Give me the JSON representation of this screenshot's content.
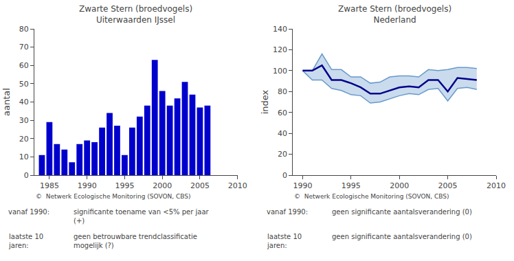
{
  "chart_data": [
    {
      "type": "bar",
      "title": "Zwarte Stern (broedvogels)",
      "subtitle": "Uiterwaarden IJssel",
      "ylabel": "aantal",
      "x": [
        1984,
        1985,
        1986,
        1987,
        1988,
        1989,
        1990,
        1991,
        1992,
        1993,
        1994,
        1995,
        1996,
        1997,
        1998,
        1999,
        2000,
        2001,
        2002,
        2003,
        2004,
        2005,
        2006,
        2007
      ],
      "values": [
        11,
        29,
        17,
        14,
        7,
        17,
        19,
        18,
        26,
        34,
        27,
        11,
        26,
        32,
        38,
        63,
        46,
        38,
        42,
        51,
        44,
        37,
        38,
        0
      ],
      "color": "#0000cc",
      "xlim": [
        1983,
        2010
      ],
      "xticks": [
        1985,
        1990,
        1995,
        2000,
        2005,
        2010
      ],
      "ylim": [
        0,
        80
      ],
      "yticks": [
        0,
        10,
        20,
        30,
        40,
        50,
        60,
        70,
        80
      ],
      "grid": false,
      "annotations": [
        "©  Netwerk Ecologische Monitoring (SOVON, CBS)",
        "vanaf 1990:",
        "significante toename van <5% per jaar\n(+)",
        "laatste 10\njaren:",
        "geen betrouwbare trendclassificatie\nmogelijk (?)"
      ]
    },
    {
      "type": "line",
      "title": "Zwarte Stern (broedvogels)",
      "subtitle": "Nederland",
      "ylabel": "index",
      "x": [
        1990,
        1991,
        1992,
        1993,
        1994,
        1995,
        1996,
        1997,
        1998,
        1999,
        2000,
        2001,
        2002,
        2003,
        2004,
        2005,
        2006,
        2007,
        2008
      ],
      "series": [
        {
          "color": "#6699cc",
          "values": [
            100,
            91,
            91,
            83,
            81,
            77,
            76,
            69,
            70,
            73,
            76,
            78,
            77,
            82,
            83,
            71,
            83,
            84,
            82
          ]
        },
        {
          "color": "#6699cc",
          "type": "area",
          "values": [
            100,
            100,
            116,
            101,
            101,
            94,
            94,
            88,
            89,
            94,
            95,
            95,
            94,
            101,
            100,
            101,
            103,
            103,
            102
          ]
        },
        {
          "color": "#00008b",
          "values": [
            100,
            100,
            105,
            91,
            91,
            88,
            84,
            78,
            78,
            81,
            84,
            85,
            84,
            91,
            91,
            80,
            93,
            92,
            91
          ]
        }
      ],
      "xlim": [
        1989,
        2010
      ],
      "xticks": [
        1990,
        1995,
        2000,
        2005,
        2010
      ],
      "ylim": [
        0,
        140
      ],
      "yticks": [
        0,
        20,
        40,
        60,
        80,
        100,
        120,
        140
      ],
      "grid": false,
      "annotations": [
        "©  Netwerk Ecologische Monitoring (SOVON, CBS)",
        "vanaf 1990:",
        "geen significante aantalsverandering (0)",
        "laatste 10\njaren:",
        "geen significante aantalsverandering (0)"
      ]
    }
  ]
}
